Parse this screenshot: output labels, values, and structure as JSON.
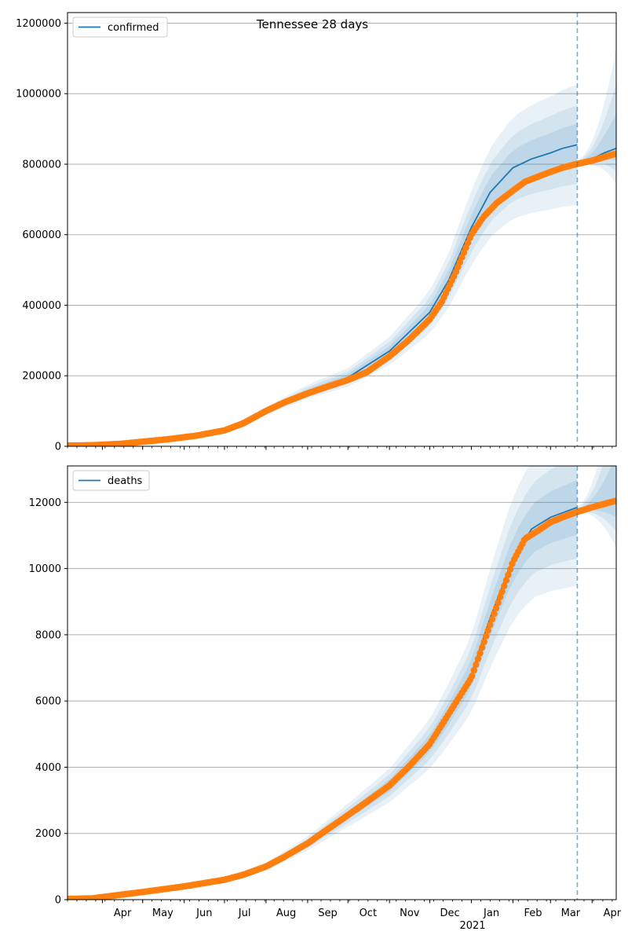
{
  "figure": {
    "title": "Tennessee 28 days",
    "year_label": "2021",
    "x_month_labels": [
      "Apr",
      "May",
      "Jun",
      "Jul",
      "Aug",
      "Sep",
      "Oct",
      "Nov",
      "Dec",
      "Jan",
      "Feb",
      "Mar",
      "Apr"
    ]
  },
  "colors": {
    "fit_line": "#1f77b4",
    "observed": "#ff7f0e",
    "band": "#1f77b4",
    "grid": "#b0b0b0",
    "cutoff": "#1f77b4"
  },
  "chart_data": [
    {
      "type": "line",
      "legend_label": "confirmed",
      "legend_position": "upper-left",
      "grid": "y",
      "x_range": [
        "2020-03-06",
        "2021-04-19"
      ],
      "ylim": [
        0,
        1230000
      ],
      "y_ticks": [
        0,
        200000,
        400000,
        600000,
        800000,
        1000000,
        1200000
      ],
      "y_tick_labels": [
        "0",
        "200000",
        "400000",
        "600000",
        "800000",
        "1000000",
        "1200000"
      ],
      "cutoff_date": "2021-03-21",
      "observed": {
        "x": [
          "2020-03-06",
          "2020-03-25",
          "2020-04-15",
          "2020-05-01",
          "2020-05-20",
          "2020-06-10",
          "2020-07-01",
          "2020-07-15",
          "2020-08-01",
          "2020-08-15",
          "2020-09-01",
          "2020-09-15",
          "2020-10-01",
          "2020-10-15",
          "2020-11-01",
          "2020-11-15",
          "2020-12-01",
          "2020-12-10",
          "2020-12-20",
          "2021-01-01",
          "2021-01-10",
          "2021-01-20",
          "2021-02-01",
          "2021-02-10",
          "2021-02-20",
          "2021-03-01",
          "2021-03-10",
          "2021-03-20",
          "2021-04-01",
          "2021-04-10",
          "2021-04-19"
        ],
        "y": [
          2000,
          3000,
          7000,
          13000,
          20000,
          30000,
          45000,
          65000,
          100000,
          125000,
          150000,
          168000,
          188000,
          210000,
          255000,
          300000,
          360000,
          410000,
          490000,
          600000,
          650000,
          690000,
          725000,
          750000,
          765000,
          778000,
          790000,
          800000,
          810000,
          820000,
          830000
        ]
      },
      "fit": {
        "x": [
          "2020-03-06",
          "2020-04-15",
          "2020-06-01",
          "2020-07-01",
          "2020-08-01",
          "2020-09-01",
          "2020-10-01",
          "2020-11-01",
          "2020-12-01",
          "2020-12-15",
          "2021-01-01",
          "2021-01-15",
          "2021-02-01",
          "2021-02-15",
          "2021-03-01",
          "2021-03-10",
          "2021-03-21"
        ],
        "y": [
          2000,
          7000,
          25000,
          45000,
          100000,
          155000,
          195000,
          270000,
          380000,
          470000,
          620000,
          720000,
          790000,
          815000,
          832000,
          845000,
          855000
        ]
      },
      "forecast": {
        "x": [
          "2021-03-21",
          "2021-04-01",
          "2021-04-10",
          "2021-04-19"
        ],
        "y": [
          800000,
          815000,
          832000,
          845000
        ]
      }
    },
    {
      "type": "line",
      "legend_label": "deaths",
      "legend_position": "upper-left",
      "grid": "y",
      "x_range": [
        "2020-03-06",
        "2021-04-19"
      ],
      "ylim": [
        0,
        13100
      ],
      "y_ticks": [
        0,
        2000,
        4000,
        6000,
        8000,
        10000,
        12000
      ],
      "y_tick_labels": [
        "0",
        "2000",
        "4000",
        "6000",
        "8000",
        "10000",
        "12000"
      ],
      "cutoff_date": "2021-03-21",
      "observed": {
        "x": [
          "2020-03-06",
          "2020-03-25",
          "2020-04-15",
          "2020-05-01",
          "2020-06-01",
          "2020-07-01",
          "2020-07-15",
          "2020-08-01",
          "2020-08-15",
          "2020-09-01",
          "2020-09-15",
          "2020-10-01",
          "2020-10-15",
          "2020-11-01",
          "2020-11-15",
          "2020-12-01",
          "2020-12-15",
          "2021-01-01",
          "2021-01-15",
          "2021-02-01",
          "2021-02-10",
          "2021-02-20",
          "2021-03-01",
          "2021-03-10",
          "2021-03-20",
          "2021-04-01",
          "2021-04-10",
          "2021-04-19"
        ],
        "y": [
          20,
          40,
          150,
          230,
          400,
          600,
          750,
          1000,
          1300,
          1700,
          2100,
          2550,
          2950,
          3450,
          4000,
          4700,
          5600,
          6700,
          8300,
          10200,
          10900,
          11150,
          11400,
          11550,
          11700,
          11850,
          11950,
          12050
        ]
      },
      "fit": {
        "x": [
          "2020-03-06",
          "2020-05-01",
          "2020-07-01",
          "2020-08-01",
          "2020-09-01",
          "2020-10-01",
          "2020-11-01",
          "2020-12-01",
          "2020-12-15",
          "2021-01-01",
          "2021-01-15",
          "2021-02-01",
          "2021-02-15",
          "2021-03-01",
          "2021-03-21"
        ],
        "y": [
          20,
          230,
          600,
          1000,
          1700,
          2550,
          3450,
          4700,
          5600,
          6800,
          8500,
          10300,
          11200,
          11550,
          11850
        ]
      },
      "forecast": {
        "x": [
          "2021-03-21",
          "2021-04-01",
          "2021-04-10",
          "2021-04-19"
        ],
        "y": [
          11700,
          11850,
          11950,
          12050
        ]
      }
    }
  ]
}
